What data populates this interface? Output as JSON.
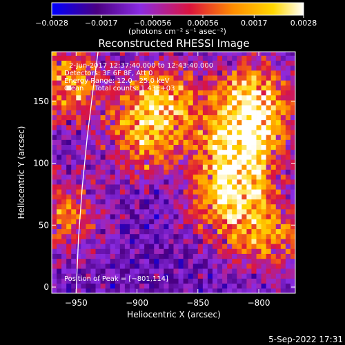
{
  "chart_data": {
    "type": "heatmap",
    "title": "Reconstructed RHESSI Image",
    "xlabel": "Heliocentric X (arcsec)",
    "ylabel": "Heliocentric Y (arcsec)",
    "xlim": [
      -970,
      -770
    ],
    "ylim": [
      -5,
      190
    ],
    "xticks": [
      -950,
      -900,
      -850,
      -800
    ],
    "yticks": [
      0,
      50,
      100,
      150
    ],
    "xtick_labels": [
      "−950",
      "−900",
      "−850",
      "−800"
    ],
    "ytick_labels": [
      "0",
      "50",
      "100",
      "150"
    ],
    "colorbar": {
      "min": -0.0028,
      "max": 0.0028,
      "ticks": [
        -0.0028,
        -0.0017,
        -0.00056,
        0.00056,
        0.0017,
        0.0028
      ],
      "tick_labels": [
        "−0.0028",
        "−0.0017",
        "−0.00056",
        "0.00056",
        "0.0017",
        "0.0028"
      ],
      "unit_label": "(photons cm⁻² s⁻¹ asec⁻²)",
      "colormap": [
        "#0000ff",
        "#4b0082",
        "#8a2be2",
        "#dc143c",
        "#ff8c00",
        "#ffd700",
        "#ffffff"
      ]
    },
    "annotations": [
      "2-Jun-2017 12:37:40.000 to 12:43:40.000",
      "Detectors: 3F 6F 8F, Att 0",
      "Energy Range: 12.0 - 25.0 keV",
      "Clean     Total counts: 1.43E+03"
    ],
    "peak_label": "Position of Peak = [−801,114]",
    "peak": [
      -801,
      114
    ],
    "limb_curve": [
      [
        -950,
        -5
      ],
      [
        -948,
        40
      ],
      [
        -945,
        80
      ],
      [
        -941,
        120
      ],
      [
        -936,
        160
      ],
      [
        -932,
        190
      ]
    ],
    "bright_regions": [
      {
        "x": -815,
        "y": 110,
        "strength": 1.0
      },
      {
        "x": -805,
        "y": 150,
        "strength": 0.95
      },
      {
        "x": -825,
        "y": 70,
        "strength": 0.8
      },
      {
        "x": -880,
        "y": 150,
        "strength": 0.75
      },
      {
        "x": -895,
        "y": 120,
        "strength": 0.55
      },
      {
        "x": -960,
        "y": 165,
        "strength": 0.7
      },
      {
        "x": -960,
        "y": 60,
        "strength": 0.5
      },
      {
        "x": -790,
        "y": 40,
        "strength": 0.55
      }
    ]
  },
  "footer": {
    "timestamp": "5-Sep-2022 17:31"
  }
}
